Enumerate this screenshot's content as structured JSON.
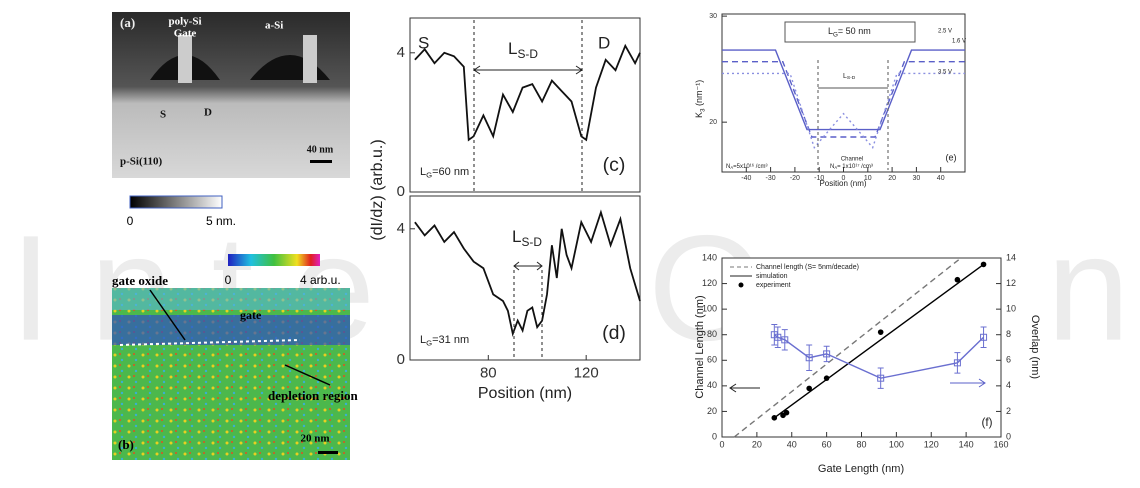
{
  "watermark": "IntechOpen",
  "panel_a": {
    "label": "(a)",
    "poly_si": "poly-Si",
    "gate": "Gate",
    "a_si": "a-Si",
    "s": "S",
    "d": "D",
    "substrate": "p-Si(110)",
    "scale": "40 nm"
  },
  "colorbar_a": {
    "min": "0",
    "max": "5 nm."
  },
  "colorbar_b": {
    "min": "0",
    "max": "4 arb.u."
  },
  "panel_b": {
    "label": "(b)",
    "gate_oxide": "gate oxide",
    "gate": "gate",
    "depletion": "depletion region",
    "scale": "20 nm"
  },
  "chart_data": [
    {
      "type": "line",
      "label": "(c)",
      "y_label": "(dI/dz) (arb.u.)",
      "x": [
        50,
        54,
        58,
        62,
        66,
        70,
        72,
        74,
        78,
        82,
        86,
        90,
        94,
        98,
        102,
        106,
        110,
        114,
        118,
        120,
        124,
        128,
        132,
        136,
        140,
        142
      ],
      "values": [
        3.8,
        4.1,
        3.7,
        4.0,
        3.9,
        3.6,
        1.5,
        1.6,
        2.2,
        1.6,
        2.8,
        2.3,
        3.0,
        3.1,
        2.6,
        3.2,
        2.9,
        2.6,
        1.6,
        1.5,
        3.0,
        3.8,
        3.5,
        4.2,
        3.7,
        4.0
      ],
      "xlim": [
        48,
        142
      ],
      "ylim": [
        0,
        5
      ],
      "yticks": [
        0,
        4
      ],
      "annotations": {
        "s": "S",
        "d": "D",
        "lsd": {
          "text": "L",
          "sub": "S-D"
        },
        "lg": {
          "text": "L",
          "sub": "G",
          "rest": "=60 nm"
        }
      }
    },
    {
      "type": "line",
      "label": "(d)",
      "x_label": "Position (nm)",
      "x": [
        50,
        54,
        58,
        62,
        66,
        70,
        74,
        78,
        82,
        86,
        88,
        90,
        92,
        94,
        96,
        98,
        100,
        102,
        104,
        106,
        108,
        110,
        112,
        114,
        118,
        122,
        126,
        130,
        134,
        138,
        142
      ],
      "values": [
        4.2,
        3.8,
        4.1,
        3.6,
        3.9,
        3.4,
        3.0,
        2.8,
        2.0,
        1.8,
        1.5,
        0.8,
        1.2,
        0.9,
        1.5,
        1.6,
        1.0,
        1.2,
        2.0,
        3.5,
        2.5,
        4.0,
        3.2,
        2.8,
        4.2,
        3.6,
        4.5,
        3.5,
        4.3,
        2.8,
        1.8
      ],
      "xlim": [
        48,
        142
      ],
      "xticks": [
        80,
        120
      ],
      "ylim": [
        0,
        5
      ],
      "yticks": [
        0,
        4
      ],
      "annotations": {
        "lsd": {
          "text": "L",
          "sub": "S-D"
        },
        "lg": {
          "text": "L",
          "sub": "G",
          "rest": "=31 nm"
        }
      }
    },
    {
      "type": "line",
      "label": "(e)",
      "x_label": "Position (nm)",
      "y_label": {
        "text": "K",
        "sub": "3",
        "rest": " (nm⁻¹)"
      },
      "xlim": [
        -50,
        50
      ],
      "xticks": [
        -40,
        -30,
        -20,
        -10,
        0,
        10,
        20,
        30,
        40
      ],
      "ylim": [
        15.3,
        30.2
      ],
      "yticks": [
        20,
        30
      ],
      "series": [
        {
          "name": "2.5 V",
          "color": "#5a5fc8",
          "style": "solid",
          "x": [
            -50,
            -28,
            -15,
            15,
            28,
            50
          ],
          "values": [
            26.8,
            26.8,
            19.3,
            19.3,
            26.8,
            26.8
          ]
        },
        {
          "name": "1.6 V",
          "color": "#5a5fc8",
          "style": "dashed",
          "x": [
            -50,
            -25,
            -13,
            13,
            25,
            50
          ],
          "values": [
            25.7,
            25.7,
            18.6,
            18.6,
            25.7,
            25.7
          ]
        },
        {
          "name": "3.5 V",
          "color": "#8a8fe0",
          "style": "dotted",
          "x": [
            -50,
            -22,
            -12,
            -5,
            0,
            5,
            12,
            22,
            50
          ],
          "values": [
            24.6,
            24.6,
            17.6,
            19.5,
            20.8,
            19.5,
            17.6,
            24.6,
            24.6
          ]
        }
      ],
      "annotations": {
        "lg": {
          "text": "L",
          "sub": "G",
          "rest": "= 50 nm"
        },
        "lsd": {
          "text": "L",
          "sub": "S-D"
        },
        "channel": "Channel",
        "na1": {
          "text": "N",
          "sub": "A",
          "rest": "= 1x10¹⁷ /cm³"
        },
        "na2": {
          "text": "N",
          "sub": "A",
          "rest": "=5x10¹⁶ /cm³"
        }
      }
    },
    {
      "type": "line",
      "label": "(f)",
      "x_label": "Gate Length (nm)",
      "y_label": "Channel Length (nm)",
      "y2_label": "Overlap (nm)",
      "xlim": [
        0,
        160
      ],
      "xticks": [
        0,
        20,
        40,
        60,
        80,
        100,
        120,
        140,
        160
      ],
      "ylim": [
        0,
        140
      ],
      "yticks": [
        0,
        20,
        40,
        60,
        80,
        100,
        120,
        140
      ],
      "y2lim": [
        0,
        14
      ],
      "y2ticks": [
        0,
        2,
        4,
        6,
        8,
        10,
        12,
        14
      ],
      "series": [
        {
          "name": "Channel length (S= 5nm/decade)",
          "color": "#777777",
          "style": "dashed",
          "x": [
            7,
            137
          ],
          "values": [
            0,
            140
          ]
        },
        {
          "name": "simulation",
          "color": "#000000",
          "style": "solid",
          "x": [
            30,
            150
          ],
          "values": [
            15,
            135
          ]
        },
        {
          "name": "experiment",
          "color": "#000000",
          "style": "none",
          "marker": "circle",
          "x": [
            30,
            35,
            37,
            50,
            60,
            91,
            135,
            150
          ],
          "values": [
            15,
            17,
            19,
            38,
            46,
            82,
            123,
            135
          ]
        },
        {
          "color": "#6a6fd0",
          "style": "solid",
          "marker": "square",
          "axis": "y2",
          "x": [
            30,
            32,
            36,
            50,
            60,
            91,
            135,
            150
          ],
          "values": [
            8,
            7.8,
            7.6,
            6.2,
            6.5,
            4.6,
            5.8,
            7.8
          ],
          "errors": [
            0.8,
            0.8,
            0.8,
            1.0,
            0.6,
            0.8,
            0.8,
            0.8
          ]
        }
      ]
    }
  ]
}
